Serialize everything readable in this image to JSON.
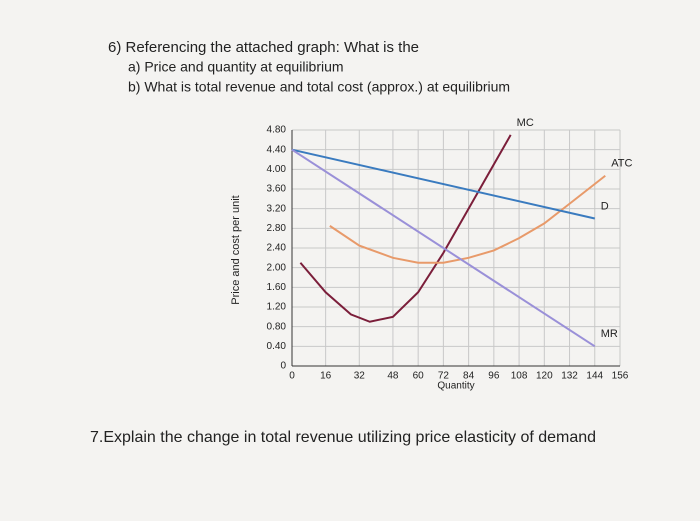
{
  "questions": {
    "q6": "6) Referencing the attached graph: What is the",
    "q6a": "a) Price and quantity at equilibrium",
    "q6b": "b) What is total revenue and total cost (approx.) at equilibrium",
    "q7": "7.Explain the change in total revenue utilizing price elasticity of demand"
  },
  "chart_data": {
    "type": "line",
    "xlabel": "Quantity",
    "ylabel": "Price and cost per unit",
    "xlim": [
      0,
      156
    ],
    "ylim": [
      0,
      4.8
    ],
    "xticks": [
      0,
      16,
      32,
      48,
      60,
      72,
      84,
      96,
      108,
      120,
      132,
      144,
      156
    ],
    "yticks": [
      0,
      {
        "value": 0.4,
        "label": "0.40"
      },
      {
        "value": 0.8,
        "label": "0.80"
      },
      {
        "value": 1.2,
        "label": "1.20"
      },
      {
        "value": 1.6,
        "label": "1.60"
      },
      {
        "value": 2.0,
        "label": "2.00"
      },
      {
        "value": 2.4,
        "label": "2.40"
      },
      {
        "value": 2.8,
        "label": "2.80"
      },
      {
        "value": 3.2,
        "label": "3.20"
      },
      {
        "value": 3.6,
        "label": "3.60"
      },
      {
        "value": 4.0,
        "label": "4.00"
      },
      {
        "value": 4.4,
        "label": "4.40"
      },
      {
        "value": 4.8,
        "label": "4.80"
      }
    ],
    "grid": true,
    "series": [
      {
        "name": "MC",
        "color": "#7b1e3a",
        "x": [
          4,
          16,
          28,
          37,
          48,
          60,
          72,
          84,
          96,
          104
        ],
        "values": [
          2.1,
          1.5,
          1.05,
          0.9,
          1.0,
          1.5,
          2.3,
          3.2,
          4.1,
          4.7
        ]
      },
      {
        "name": "ATC",
        "color": "#e89a6a",
        "x": [
          18,
          32,
          48,
          60,
          72,
          84,
          96,
          108,
          120,
          132,
          149
        ],
        "values": [
          2.85,
          2.45,
          2.2,
          2.1,
          2.1,
          2.2,
          2.35,
          2.6,
          2.9,
          3.3,
          3.87
        ]
      },
      {
        "name": "D",
        "color": "#3a7bbf",
        "x": [
          0,
          144
        ],
        "values": [
          4.4,
          3.0
        ]
      },
      {
        "name": "MR",
        "color": "#9a90d8",
        "x": [
          0,
          144
        ],
        "values": [
          4.4,
          0.4
        ]
      }
    ]
  }
}
